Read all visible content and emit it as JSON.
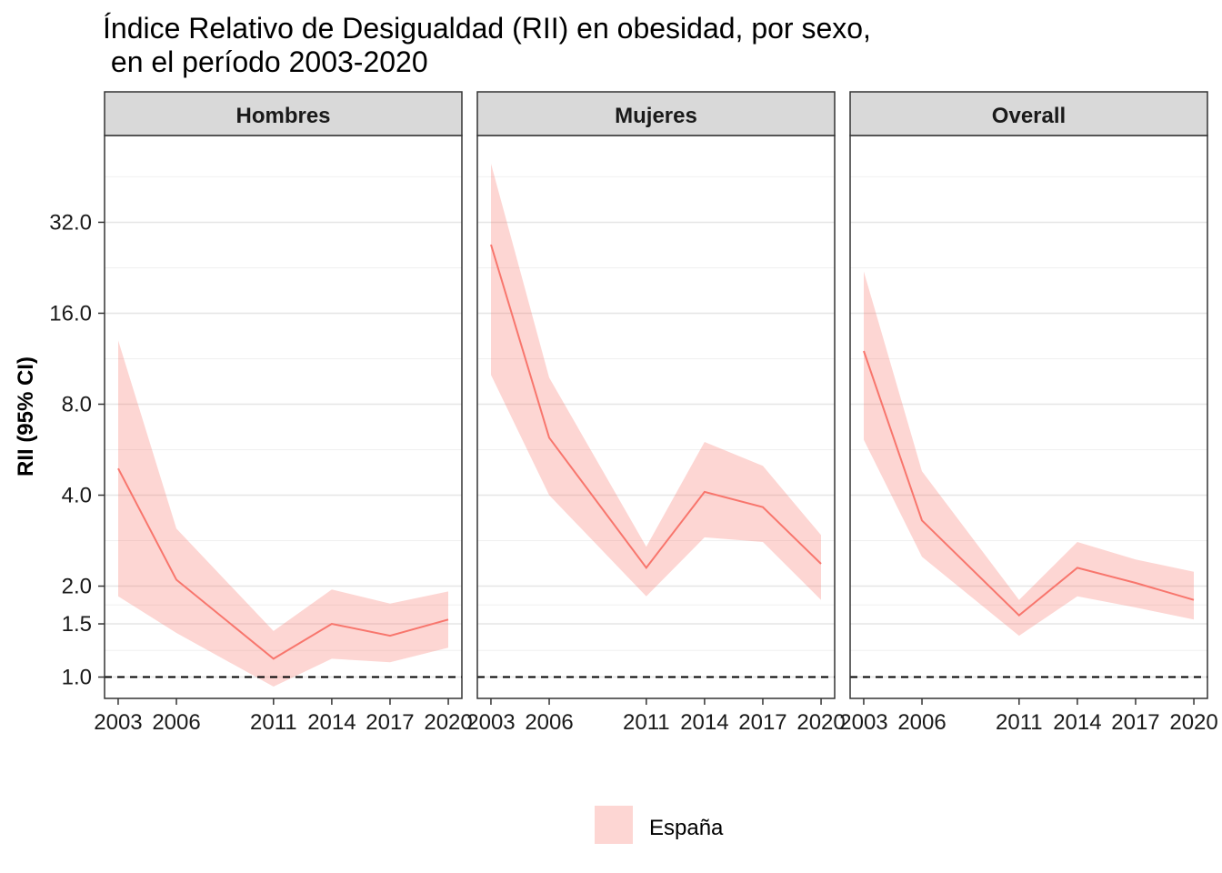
{
  "chart_data": {
    "type": "line",
    "title_line1": "Índice Relativo de Desigualdad (RII) en obesidad, por sexo,",
    "title_line2": " en el período 2003-2020",
    "ylabel": "RII (95% CI)",
    "xlabel": "",
    "y_scale": "log2",
    "ylim": [
      0.85,
      62
    ],
    "y_ticks": [
      1.0,
      1.5,
      2.0,
      4.0,
      8.0,
      16.0,
      32.0
    ],
    "y_tick_labels": [
      "1.0",
      "1.5",
      "2.0",
      "4.0",
      "8.0",
      "16.0",
      "32.0"
    ],
    "x_ticks": [
      2003,
      2006,
      2011,
      2014,
      2017,
      2020
    ],
    "x_tick_labels": [
      "2003",
      "2006",
      "2011",
      "2014",
      "2017",
      "2020"
    ],
    "reference_line": 1.0,
    "grid": true,
    "legend_position": "bottom",
    "colors": {
      "line": "#F8766D",
      "ribbon": "#F8766D",
      "ribbon_opacity": 0.3,
      "strip_bg": "#D9D9D9"
    },
    "series_name": "España",
    "panels": [
      {
        "name": "Hombres",
        "x": [
          2003,
          2006,
          2011,
          2014,
          2017,
          2020
        ],
        "y": [
          4.9,
          2.1,
          1.15,
          1.5,
          1.37,
          1.55
        ],
        "lower": [
          1.85,
          1.4,
          0.93,
          1.15,
          1.12,
          1.25
        ],
        "upper": [
          13.0,
          3.1,
          1.42,
          1.95,
          1.75,
          1.92
        ]
      },
      {
        "name": "Mujeres",
        "x": [
          2003,
          2006,
          2011,
          2014,
          2017,
          2020
        ],
        "y": [
          27.0,
          6.2,
          2.3,
          4.1,
          3.65,
          2.37
        ],
        "lower": [
          10.0,
          4.0,
          1.85,
          2.9,
          2.8,
          1.8
        ],
        "upper": [
          50.0,
          9.8,
          2.7,
          6.0,
          5.0,
          2.95
        ]
      },
      {
        "name": "Overall",
        "x": [
          2003,
          2006,
          2011,
          2014,
          2017,
          2020
        ],
        "y": [
          12.0,
          3.3,
          1.6,
          2.3,
          2.05,
          1.8
        ],
        "lower": [
          6.1,
          2.5,
          1.37,
          1.85,
          1.7,
          1.55
        ],
        "upper": [
          22.0,
          4.8,
          1.8,
          2.8,
          2.45,
          2.23
        ]
      }
    ]
  }
}
